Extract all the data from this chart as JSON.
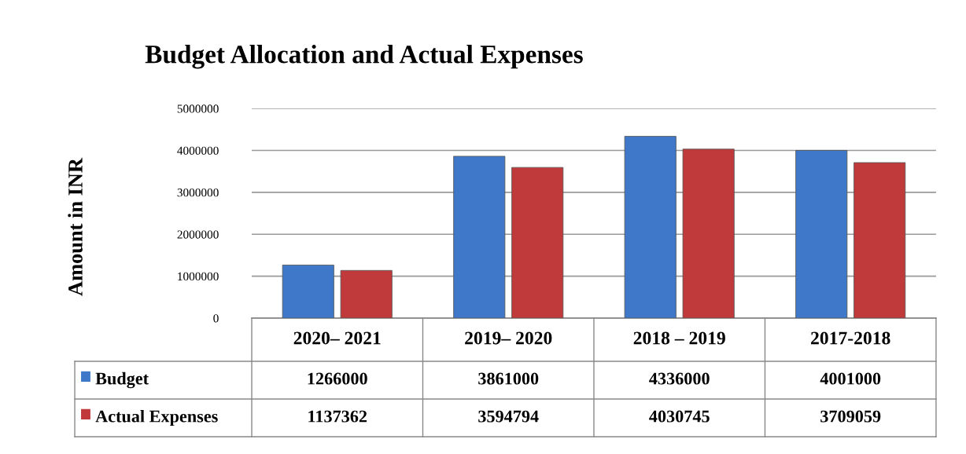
{
  "chart_data": {
    "type": "bar",
    "title": "Budget Allocation and Actual Expenses",
    "ylabel": "Amount in INR",
    "categories": [
      "2020– 2021",
      "2019– 2020",
      "2018 – 2019",
      "2017-2018"
    ],
    "series": [
      {
        "name": "Budget",
        "color": "#3f78c8",
        "values": [
          1266000,
          3861000,
          4336000,
          4001000
        ]
      },
      {
        "name": "Actual Expenses",
        "color": "#c0393b",
        "values": [
          1137362,
          3594794,
          4030745,
          3709059
        ]
      }
    ],
    "ylim": [
      0,
      5000000
    ],
    "yticks": [
      0,
      1000000,
      2000000,
      3000000,
      4000000,
      5000000
    ],
    "grid": "y",
    "legend": "bottom",
    "data_labels": true
  }
}
